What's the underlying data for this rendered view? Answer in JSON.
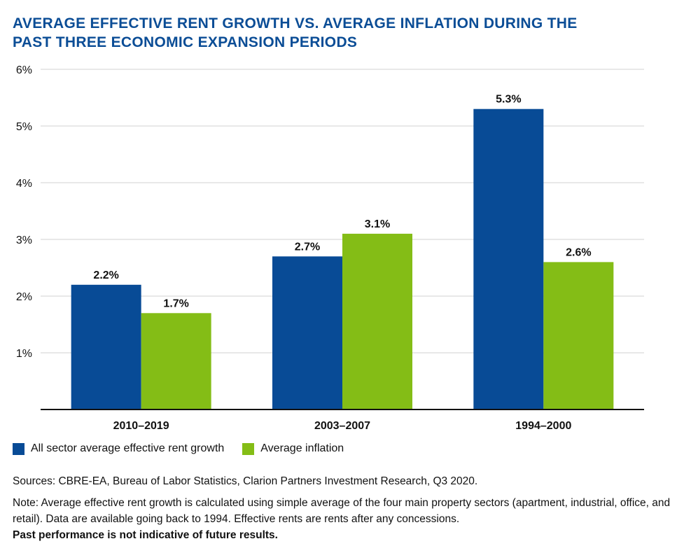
{
  "title": {
    "line1": "AVERAGE EFFECTIVE RENT GROWTH VS. AVERAGE INFLATION DURING THE",
    "line2": "PAST THREE ECONOMIC EXPANSION PERIODS"
  },
  "colors": {
    "title": "#0b4d96",
    "rent": "#084b96",
    "inflation": "#84bd16",
    "grid": "#d0d0d0",
    "axis": "#111111"
  },
  "chart_data": {
    "type": "bar",
    "title": "AVERAGE EFFECTIVE RENT GROWTH VS. AVERAGE INFLATION DURING THE PAST THREE ECONOMIC EXPANSION PERIODS",
    "categories": [
      "2010–2019",
      "2003–2007",
      "1994–2000"
    ],
    "series": [
      {
        "name": "All sector average effective rent growth",
        "values": [
          2.2,
          2.7,
          5.3
        ],
        "labels": [
          "2.2%",
          "2.7%",
          "5.3%"
        ]
      },
      {
        "name": "Average inflation",
        "values": [
          1.7,
          3.1,
          2.6
        ],
        "labels": [
          "1.7%",
          "3.1%",
          "2.6%"
        ]
      }
    ],
    "yticks": [
      1,
      2,
      3,
      4,
      5,
      6
    ],
    "ytick_labels": [
      "1%",
      "2%",
      "3%",
      "4%",
      "5%",
      "6%"
    ],
    "ylim": [
      0,
      6
    ],
    "xlabel": "",
    "ylabel": "",
    "grid": true,
    "legend": "bottom-left"
  },
  "legend": {
    "rent_label": "All sector average effective rent growth",
    "inflation_label": "Average inflation"
  },
  "notes": {
    "sources": "Sources: CBRE-EA, Bureau of Labor Statistics, Clarion Partners Investment Research, Q3 2020.",
    "note": "Note: Average effective rent growth is calculated using simple average of the four main property sectors (apartment, industrial, office, and retail). Data are available going back to 1994. Effective rents are rents after any concessions.",
    "disclaimer": "Past performance is not indicative of future results."
  }
}
